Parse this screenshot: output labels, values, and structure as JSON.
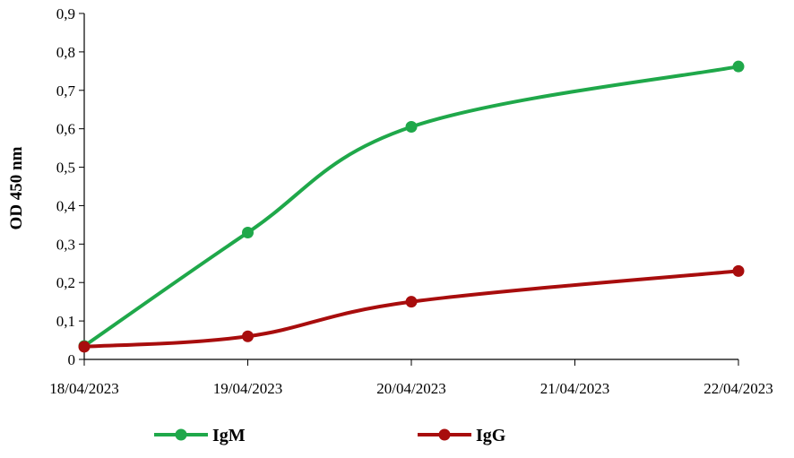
{
  "chart_data": {
    "type": "line",
    "title": "",
    "xlabel": "",
    "ylabel": "OD 450 nm",
    "categories": [
      "18/04/2023",
      "19/04/2023",
      "20/04/2023",
      "21/04/2023",
      "22/04/2023"
    ],
    "y_ticks": [
      "0",
      "0,1",
      "0,2",
      "0,3",
      "0,4",
      "0,5",
      "0,6",
      "0,7",
      "0,8",
      "0,9"
    ],
    "ylim": [
      0,
      0.9
    ],
    "grid": false,
    "legend_position": "bottom",
    "series": [
      {
        "name": "IgM",
        "color": "#1fa84a",
        "x": [
          "18/04/2023",
          "19/04/2023",
          "20/04/2023",
          "22/04/2023"
        ],
        "values": [
          0.035,
          0.33,
          0.605,
          0.762
        ]
      },
      {
        "name": "IgG",
        "color": "#a80d0d",
        "x": [
          "18/04/2023",
          "19/04/2023",
          "20/04/2023",
          "22/04/2023"
        ],
        "values": [
          0.033,
          0.06,
          0.15,
          0.23
        ]
      }
    ]
  }
}
